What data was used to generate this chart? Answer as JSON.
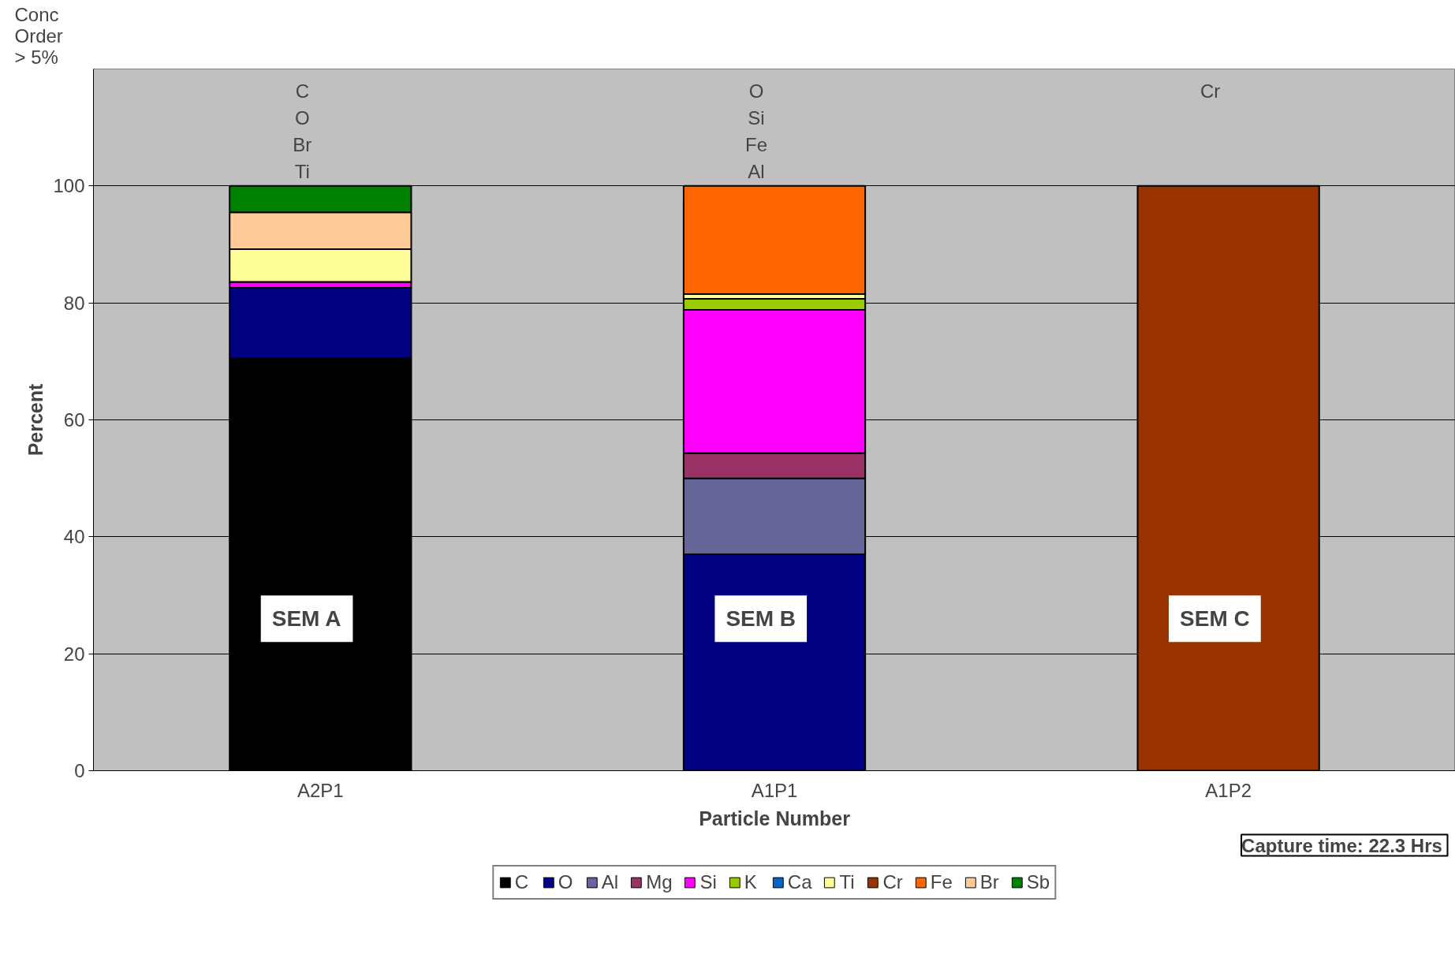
{
  "chart_data": {
    "type": "bar",
    "stacked": true,
    "xlabel": "Particle Number",
    "ylabel": "Percent",
    "categories": [
      "A2P1",
      "A1P1",
      "A1P2"
    ],
    "ylim": [
      0,
      120
    ],
    "yticks": [
      0,
      20,
      40,
      60,
      80,
      100
    ],
    "grid": "y",
    "legend": "bottom",
    "series": [
      {
        "name": "C",
        "color": "#000000",
        "values": [
          70.6,
          null,
          null
        ]
      },
      {
        "name": "O",
        "color": "#000080",
        "values": [
          12.0,
          37.0,
          null
        ]
      },
      {
        "name": "Al",
        "color": "#666699",
        "values": [
          null,
          13.0,
          null
        ]
      },
      {
        "name": "Mg",
        "color": "#993366",
        "values": [
          null,
          4.3,
          null
        ]
      },
      {
        "name": "Si",
        "color": "#ff00ff",
        "values": [
          1.0,
          24.5,
          null
        ]
      },
      {
        "name": "K",
        "color": "#99cc00",
        "values": [
          null,
          1.9,
          null
        ]
      },
      {
        "name": "Ca",
        "color": "#0066cc",
        "values": [
          null,
          null,
          null
        ]
      },
      {
        "name": "Ti",
        "color": "#ffff99",
        "values": [
          5.6,
          0.8,
          null
        ]
      },
      {
        "name": "Cr",
        "color": "#993300",
        "values": [
          null,
          null,
          100
        ]
      },
      {
        "name": "Fe",
        "color": "#ff6600",
        "values": [
          null,
          18.5,
          null
        ]
      },
      {
        "name": "Br",
        "color": "#ffcc99",
        "values": [
          6.3,
          null,
          null
        ]
      },
      {
        "name": "Sb",
        "color": "#008000",
        "values": [
          4.5,
          null,
          null
        ]
      }
    ],
    "annotations": [
      "Conc\nOrder\n> 5%",
      "Capture time:  22.3 Hrs",
      "C\nO\nBr\nTi",
      "O\nSi\nFe\nAl",
      "Cr",
      "SEM A",
      "SEM B",
      "SEM C"
    ]
  }
}
